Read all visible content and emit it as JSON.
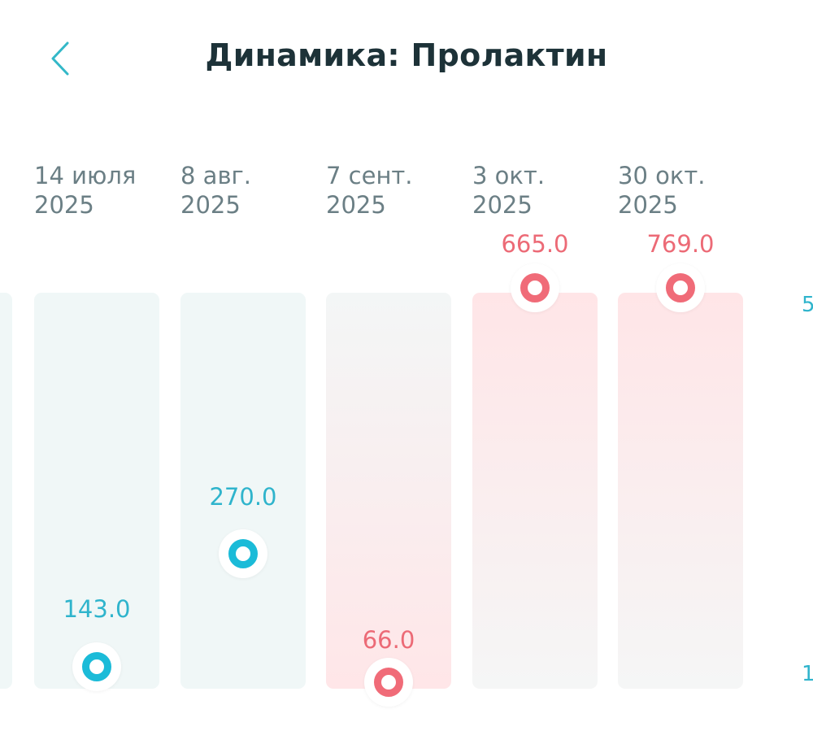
{
  "header": {
    "back_icon": "chevron-left-icon",
    "title": "Динамика: Пролактин"
  },
  "colors": {
    "normal": "#1bbbd8",
    "out_of_range": "#f06b78",
    "bar_bg": "#f0f7f7"
  },
  "axis": {
    "upper_label": "5",
    "lower_label": "1"
  },
  "points": [
    {
      "date_line1": "14 июля",
      "date_line2": "2025",
      "value": "143.0",
      "status": "normal"
    },
    {
      "date_line1": "8 авг.",
      "date_line2": "2025",
      "value": "270.0",
      "status": "normal"
    },
    {
      "date_line1": "7 сент.",
      "date_line2": "2025",
      "value": "66.0",
      "status": "low"
    },
    {
      "date_line1": "3 окт.",
      "date_line2": "2025",
      "value": "665.0",
      "status": "high"
    },
    {
      "date_line1": "30 окт.",
      "date_line2": "2025",
      "value": "769.0",
      "status": "high"
    }
  ]
}
